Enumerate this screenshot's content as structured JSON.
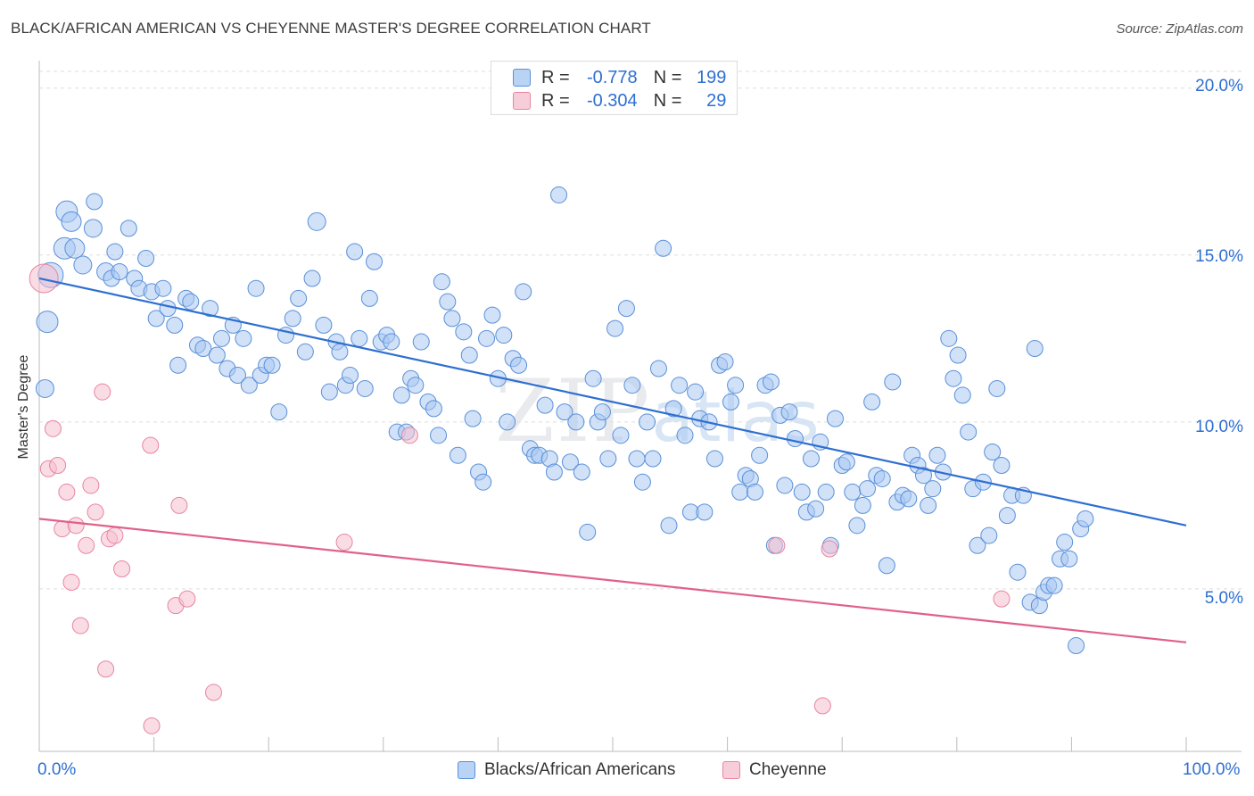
{
  "title": "BLACK/AFRICAN AMERICAN VS CHEYENNE MASTER'S DEGREE CORRELATION CHART",
  "source": "Source: ZipAtlas.com",
  "watermark": {
    "zip": "ZIP",
    "atlas": "atlas"
  },
  "legend": {
    "r_label": "R =",
    "n_label": "N =",
    "rows": [
      {
        "r": "-0.778",
        "n": "199"
      },
      {
        "r": "-0.304",
        "n": "29"
      }
    ]
  },
  "bottom_legend": [
    "Blacks/African Americans",
    "Cheyenne"
  ],
  "colors": {
    "blue_fill": "#a9c8f2",
    "blue_stroke": "#5a90d8",
    "blue_line": "#2e6fd1",
    "pink_fill": "#f6bfd0",
    "pink_stroke": "#e8859f",
    "pink_line": "#e0618c",
    "tick_text": "#2e6fd1",
    "grid": "#dedede"
  },
  "chart_data": {
    "type": "scatter",
    "title": "BLACK/AFRICAN AMERICAN VS CHEYENNE MASTER'S DEGREE CORRELATION CHART",
    "xlabel": "",
    "ylabel": "Master's Degree",
    "xlim": [
      0,
      100
    ],
    "ylim": [
      0,
      20.5
    ],
    "x_tick_labels": [
      "0.0%",
      "100.0%"
    ],
    "y_ticks": [
      5,
      10,
      15,
      20
    ],
    "y_tick_labels": [
      "5.0%",
      "10.0%",
      "15.0%",
      "20.0%"
    ],
    "grid": true,
    "legend_position": "top-center",
    "series": [
      {
        "name": "Blacks/African Americans",
        "R": -0.778,
        "N": 199,
        "trend": {
          "x": [
            0,
            100
          ],
          "y": [
            14.3,
            6.9
          ]
        },
        "points": [
          [
            0.5,
            11.0,
            10
          ],
          [
            0.7,
            13.0,
            12
          ],
          [
            1.0,
            14.4,
            14
          ],
          [
            2.2,
            15.2,
            12
          ],
          [
            2.4,
            16.3,
            12
          ],
          [
            2.8,
            16.0,
            11
          ],
          [
            3.1,
            15.2,
            11
          ],
          [
            3.8,
            14.7,
            10
          ],
          [
            4.7,
            15.8,
            10
          ],
          [
            4.8,
            16.6,
            9
          ],
          [
            5.8,
            14.5,
            10
          ],
          [
            6.3,
            14.3,
            9
          ],
          [
            6.6,
            15.1,
            9
          ],
          [
            7.0,
            14.5,
            9
          ],
          [
            7.8,
            15.8,
            9
          ],
          [
            8.3,
            14.3,
            9
          ],
          [
            8.7,
            14.0,
            9
          ],
          [
            9.3,
            14.9,
            9
          ],
          [
            9.8,
            13.9,
            9
          ],
          [
            10.2,
            13.1,
            9
          ],
          [
            10.8,
            14.0,
            9
          ],
          [
            11.2,
            13.4,
            9
          ],
          [
            11.8,
            12.9,
            9
          ],
          [
            12.1,
            11.7,
            9
          ],
          [
            12.8,
            13.7,
            9
          ],
          [
            13.2,
            13.6,
            9
          ],
          [
            13.8,
            12.3,
            9
          ],
          [
            14.3,
            12.2,
            9
          ],
          [
            14.9,
            13.4,
            9
          ],
          [
            15.5,
            12.0,
            9
          ],
          [
            15.9,
            12.5,
            9
          ],
          [
            16.4,
            11.6,
            9
          ],
          [
            16.9,
            12.9,
            9
          ],
          [
            17.3,
            11.4,
            9
          ],
          [
            17.8,
            12.5,
            9
          ],
          [
            18.3,
            11.1,
            9
          ],
          [
            18.9,
            14.0,
            9
          ],
          [
            19.3,
            11.4,
            9
          ],
          [
            19.8,
            11.7,
            9
          ],
          [
            20.3,
            11.7,
            9
          ],
          [
            20.9,
            10.3,
            9
          ],
          [
            21.5,
            12.6,
            9
          ],
          [
            22.1,
            13.1,
            9
          ],
          [
            22.6,
            13.7,
            9
          ],
          [
            23.2,
            12.1,
            9
          ],
          [
            23.8,
            14.3,
            9
          ],
          [
            24.2,
            16.0,
            10
          ],
          [
            24.8,
            12.9,
            9
          ],
          [
            25.3,
            10.9,
            9
          ],
          [
            25.9,
            12.4,
            9
          ],
          [
            26.2,
            12.1,
            9
          ],
          [
            26.7,
            11.1,
            9
          ],
          [
            27.1,
            11.4,
            9
          ],
          [
            27.5,
            15.1,
            9
          ],
          [
            27.9,
            12.5,
            9
          ],
          [
            28.4,
            11.0,
            9
          ],
          [
            28.8,
            13.7,
            9
          ],
          [
            29.2,
            14.8,
            9
          ],
          [
            29.8,
            12.4,
            9
          ],
          [
            30.3,
            12.6,
            9
          ],
          [
            30.7,
            12.4,
            9
          ],
          [
            31.2,
            9.7,
            9
          ],
          [
            31.6,
            10.8,
            9
          ],
          [
            32.0,
            9.7,
            9
          ],
          [
            32.4,
            11.3,
            9
          ],
          [
            32.8,
            11.1,
            9
          ],
          [
            33.3,
            12.4,
            9
          ],
          [
            33.9,
            10.6,
            9
          ],
          [
            34.4,
            10.4,
            9
          ],
          [
            34.8,
            9.6,
            9
          ],
          [
            35.1,
            14.2,
            9
          ],
          [
            35.6,
            13.6,
            9
          ],
          [
            36.0,
            13.1,
            9
          ],
          [
            36.5,
            9.0,
            9
          ],
          [
            37.0,
            12.7,
            9
          ],
          [
            37.5,
            12.0,
            9
          ],
          [
            37.8,
            10.1,
            9
          ],
          [
            38.3,
            8.5,
            9
          ],
          [
            38.7,
            8.2,
            9
          ],
          [
            39.0,
            12.5,
            9
          ],
          [
            39.5,
            13.2,
            9
          ],
          [
            40.0,
            11.3,
            9
          ],
          [
            40.5,
            12.6,
            9
          ],
          [
            40.8,
            10.0,
            9
          ],
          [
            41.3,
            11.9,
            9
          ],
          [
            41.8,
            11.7,
            9
          ],
          [
            42.2,
            13.9,
            9
          ],
          [
            42.8,
            9.2,
            9
          ],
          [
            43.2,
            9.0,
            9
          ],
          [
            43.6,
            9.0,
            9
          ],
          [
            44.1,
            10.5,
            9
          ],
          [
            44.5,
            8.9,
            9
          ],
          [
            44.9,
            8.5,
            9
          ],
          [
            45.3,
            16.8,
            9
          ],
          [
            45.8,
            10.3,
            9
          ],
          [
            46.3,
            8.8,
            9
          ],
          [
            46.8,
            10.0,
            9
          ],
          [
            47.3,
            8.5,
            9
          ],
          [
            47.8,
            6.7,
            9
          ],
          [
            48.3,
            11.3,
            9
          ],
          [
            48.7,
            10.0,
            9
          ],
          [
            49.1,
            10.3,
            9
          ],
          [
            49.6,
            8.9,
            9
          ],
          [
            50.2,
            12.8,
            9
          ],
          [
            50.7,
            9.6,
            9
          ],
          [
            51.2,
            13.4,
            9
          ],
          [
            51.7,
            11.1,
            9
          ],
          [
            52.1,
            8.9,
            9
          ],
          [
            52.6,
            8.2,
            9
          ],
          [
            53.0,
            10.0,
            9
          ],
          [
            53.5,
            8.9,
            9
          ],
          [
            54.0,
            11.6,
            9
          ],
          [
            54.4,
            15.2,
            9
          ],
          [
            54.9,
            6.9,
            9
          ],
          [
            55.3,
            10.4,
            9
          ],
          [
            55.8,
            11.1,
            9
          ],
          [
            56.3,
            9.6,
            9
          ],
          [
            56.8,
            7.3,
            9
          ],
          [
            57.2,
            10.9,
            9
          ],
          [
            57.6,
            10.1,
            9
          ],
          [
            58.0,
            7.3,
            9
          ],
          [
            58.4,
            10.0,
            9
          ],
          [
            58.9,
            8.9,
            9
          ],
          [
            59.3,
            11.7,
            9
          ],
          [
            59.8,
            11.8,
            9
          ],
          [
            60.3,
            10.6,
            9
          ],
          [
            60.7,
            11.1,
            9
          ],
          [
            61.1,
            7.9,
            9
          ],
          [
            61.6,
            8.4,
            9
          ],
          [
            62.0,
            8.3,
            9
          ],
          [
            62.4,
            7.9,
            9
          ],
          [
            62.8,
            9.0,
            9
          ],
          [
            63.3,
            11.1,
            9
          ],
          [
            63.8,
            11.2,
            9
          ],
          [
            64.1,
            6.3,
            9
          ],
          [
            64.6,
            10.2,
            9
          ],
          [
            65.0,
            8.1,
            9
          ],
          [
            65.4,
            10.3,
            9
          ],
          [
            65.9,
            9.5,
            9
          ],
          [
            66.5,
            7.9,
            9
          ],
          [
            66.9,
            7.3,
            9
          ],
          [
            67.3,
            8.9,
            9
          ],
          [
            67.7,
            7.4,
            9
          ],
          [
            68.1,
            9.4,
            9
          ],
          [
            68.6,
            7.9,
            9
          ],
          [
            69.0,
            6.3,
            9
          ],
          [
            69.4,
            10.1,
            9
          ],
          [
            70.0,
            8.7,
            9
          ],
          [
            70.4,
            8.8,
            9
          ],
          [
            70.9,
            7.9,
            9
          ],
          [
            71.3,
            6.9,
            9
          ],
          [
            71.8,
            7.5,
            9
          ],
          [
            72.2,
            8.0,
            9
          ],
          [
            72.6,
            10.6,
            9
          ],
          [
            73.0,
            8.4,
            9
          ],
          [
            73.5,
            8.3,
            9
          ],
          [
            73.9,
            5.7,
            9
          ],
          [
            74.4,
            11.2,
            9
          ],
          [
            74.8,
            7.6,
            9
          ],
          [
            75.3,
            7.8,
            9
          ],
          [
            75.8,
            7.7,
            9
          ],
          [
            76.1,
            9.0,
            9
          ],
          [
            76.6,
            8.7,
            9
          ],
          [
            77.1,
            8.4,
            9
          ],
          [
            77.5,
            7.5,
            9
          ],
          [
            77.9,
            8.0,
            9
          ],
          [
            78.3,
            9.0,
            9
          ],
          [
            78.8,
            8.5,
            9
          ],
          [
            79.3,
            12.5,
            9
          ],
          [
            79.7,
            11.3,
            9
          ],
          [
            80.1,
            12.0,
            9
          ],
          [
            80.5,
            10.8,
            9
          ],
          [
            81.0,
            9.7,
            9
          ],
          [
            81.4,
            8.0,
            9
          ],
          [
            81.8,
            6.3,
            9
          ],
          [
            82.3,
            8.2,
            9
          ],
          [
            82.8,
            6.6,
            9
          ],
          [
            83.1,
            9.1,
            9
          ],
          [
            83.5,
            11.0,
            9
          ],
          [
            83.9,
            8.7,
            9
          ],
          [
            84.4,
            7.2,
            9
          ],
          [
            84.8,
            7.8,
            9
          ],
          [
            85.3,
            5.5,
            9
          ],
          [
            85.8,
            7.8,
            9
          ],
          [
            86.4,
            4.6,
            9
          ],
          [
            86.8,
            12.2,
            9
          ],
          [
            87.2,
            4.5,
            9
          ],
          [
            87.6,
            4.9,
            9
          ],
          [
            88.0,
            5.1,
            9
          ],
          [
            88.5,
            5.1,
            9
          ],
          [
            89.0,
            5.9,
            9
          ],
          [
            89.4,
            6.4,
            9
          ],
          [
            89.8,
            5.9,
            9
          ],
          [
            90.4,
            3.3,
            9
          ],
          [
            90.8,
            6.8,
            9
          ],
          [
            91.2,
            7.1,
            9
          ]
        ]
      },
      {
        "name": "Cheyenne",
        "R": -0.304,
        "N": 29,
        "trend": {
          "x": [
            0,
            100
          ],
          "y": [
            7.1,
            3.4
          ]
        },
        "points": [
          [
            0.4,
            14.3,
            16
          ],
          [
            0.8,
            8.6,
            9
          ],
          [
            1.2,
            9.8,
            9
          ],
          [
            1.6,
            8.7,
            9
          ],
          [
            2.0,
            6.8,
            9
          ],
          [
            2.4,
            7.9,
            9
          ],
          [
            2.8,
            5.2,
            9
          ],
          [
            3.2,
            6.9,
            9
          ],
          [
            3.6,
            3.9,
            9
          ],
          [
            4.1,
            6.3,
            9
          ],
          [
            4.5,
            8.1,
            9
          ],
          [
            4.9,
            7.3,
            9
          ],
          [
            5.5,
            10.9,
            9
          ],
          [
            5.8,
            2.6,
            9
          ],
          [
            6.1,
            6.5,
            9
          ],
          [
            6.6,
            6.6,
            9
          ],
          [
            7.2,
            5.6,
            9
          ],
          [
            9.7,
            9.3,
            9
          ],
          [
            9.8,
            0.9,
            9
          ],
          [
            11.9,
            4.5,
            9
          ],
          [
            12.2,
            7.5,
            9
          ],
          [
            12.9,
            4.7,
            9
          ],
          [
            15.2,
            1.9,
            9
          ],
          [
            26.6,
            6.4,
            9
          ],
          [
            32.3,
            9.6,
            9
          ],
          [
            64.3,
            6.3,
            9
          ],
          [
            68.3,
            1.5,
            9
          ],
          [
            68.9,
            6.2,
            9
          ],
          [
            83.9,
            4.7,
            9
          ]
        ]
      }
    ]
  }
}
